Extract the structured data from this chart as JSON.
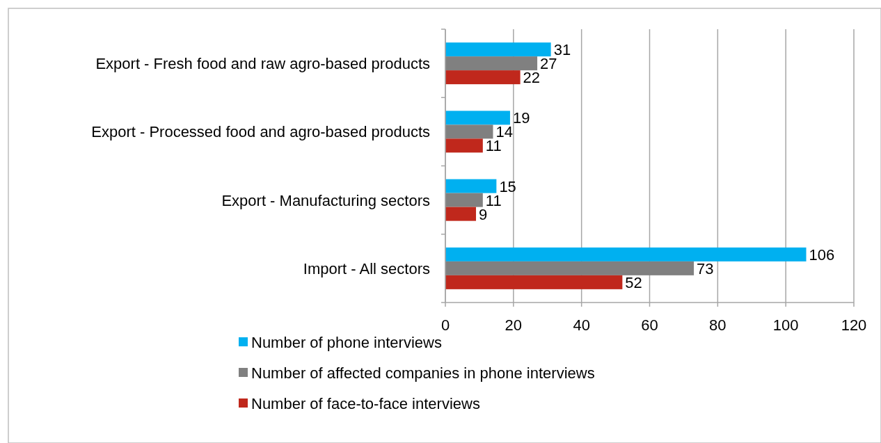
{
  "chart_data": {
    "type": "bar",
    "orientation": "horizontal",
    "categories": [
      "Export - Fresh food and raw agro-based products",
      "Export - Processed food and agro-based products",
      "Export - Manufacturing sectors",
      "Import - All sectors"
    ],
    "series": [
      {
        "name": "Number of phone interviews",
        "color": "#00b0f0",
        "values": [
          31,
          19,
          15,
          106
        ]
      },
      {
        "name": "Number of affected companies in phone interviews",
        "color": "#808080",
        "values": [
          27,
          14,
          11,
          73
        ]
      },
      {
        "name": "Number of face-to-face interviews",
        "color": "#c0281c",
        "values": [
          22,
          11,
          9,
          52
        ]
      }
    ],
    "xlim": [
      0,
      120
    ],
    "xticks": [
      0,
      20,
      40,
      60,
      80,
      100,
      120
    ],
    "grid": "x",
    "legend": "bottom",
    "data_labels": true
  }
}
